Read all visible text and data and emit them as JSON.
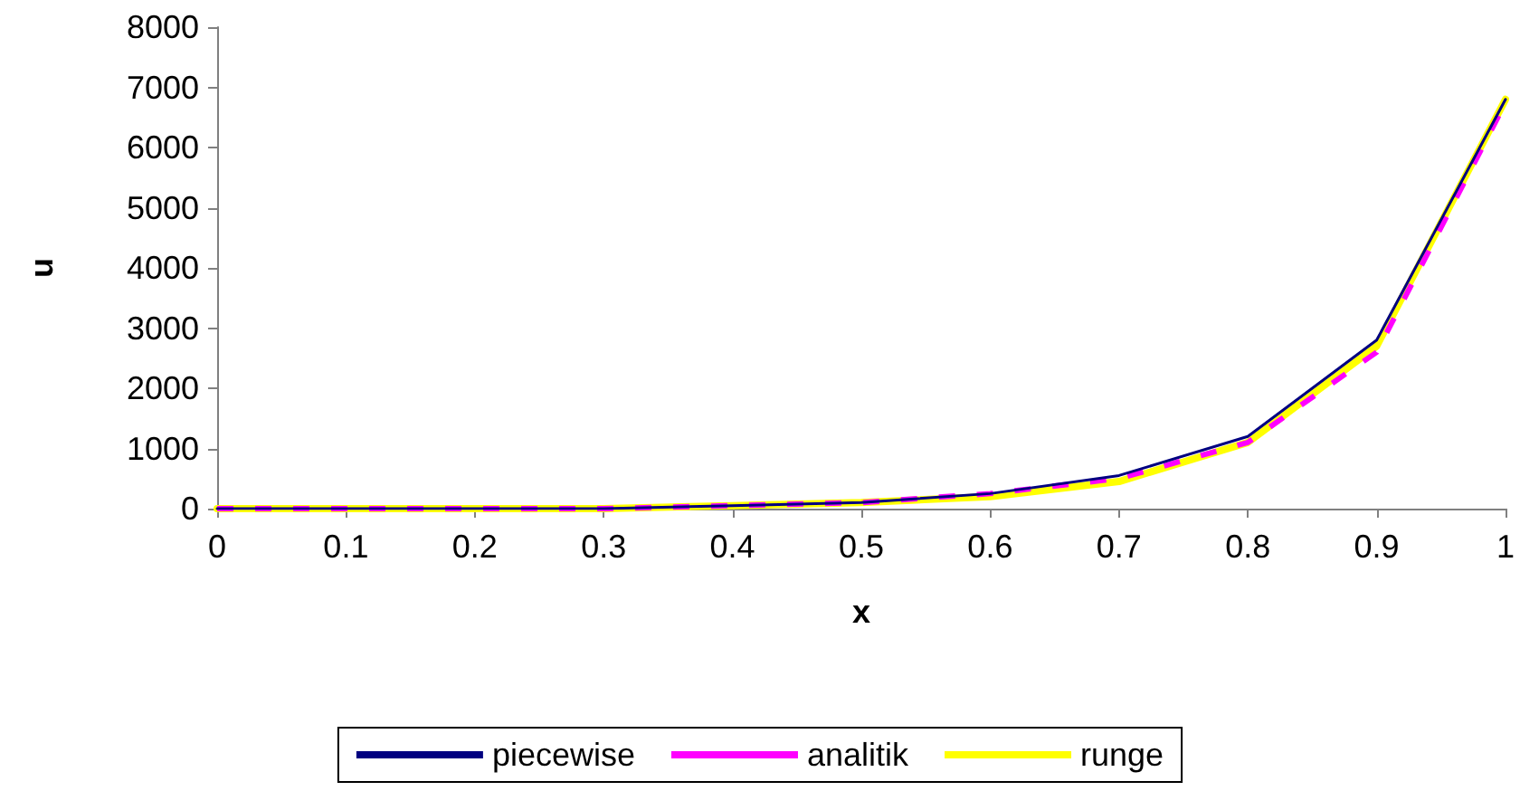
{
  "chart_data": {
    "type": "line",
    "xlabel": "x",
    "ylabel": "u",
    "x": [
      0,
      0.1,
      0.2,
      0.3,
      0.4,
      0.5,
      0.6,
      0.7,
      0.8,
      0.9,
      1
    ],
    "series": [
      {
        "name": "piecewise",
        "color": "#000080",
        "line_style": "solid",
        "values": [
          0,
          0,
          0,
          0,
          50,
          100,
          250,
          550,
          1200,
          2800,
          6800
        ]
      },
      {
        "name": "analitik",
        "color": "#ff00ff",
        "line_style": "dashed",
        "values": [
          0,
          0,
          0,
          0,
          50,
          100,
          250,
          500,
          1100,
          2600,
          6750
        ]
      },
      {
        "name": "runge",
        "color": "#ffff00",
        "line_style": "solid",
        "values": [
          0,
          0,
          0,
          0,
          50,
          100,
          200,
          450,
          1100,
          2700,
          6800
        ]
      }
    ],
    "xlim": [
      0,
      1
    ],
    "xticks": [
      0,
      0.1,
      0.2,
      0.3,
      0.4,
      0.5,
      0.6,
      0.7,
      0.8,
      0.9,
      1
    ],
    "ylim": [
      0,
      8000
    ],
    "yticks": [
      0,
      1000,
      2000,
      3000,
      4000,
      5000,
      6000,
      7000,
      8000
    ],
    "grid": false,
    "legend": "bottom",
    "marker": "none"
  }
}
